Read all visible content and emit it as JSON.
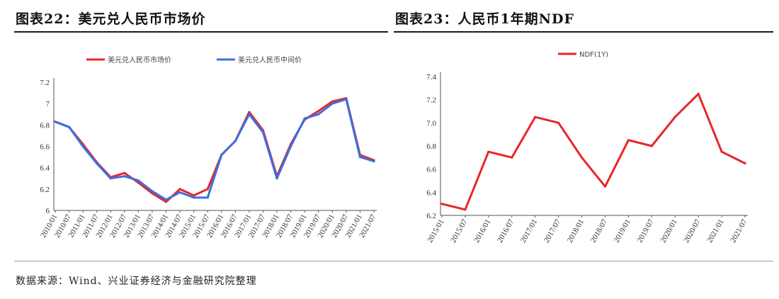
{
  "chart_data": [
    {
      "type": "line",
      "title": "图表22：美元兑人民币市场价",
      "legend_position": "top-center",
      "ylim": [
        6,
        7.2
      ],
      "yticks": [
        6,
        6.2,
        6.4,
        6.6,
        6.8,
        7,
        7.2
      ],
      "x": [
        "2010/01",
        "2010/07",
        "2011/01",
        "2011/07",
        "2012/01",
        "2012/07",
        "2013/01",
        "2013/07",
        "2014/01",
        "2014/07",
        "2015/01",
        "2015/07",
        "2016/01",
        "2016/07",
        "2017/01",
        "2017/07",
        "2018/01",
        "2018/07",
        "2019/01",
        "2019/07",
        "2020/01",
        "2020/07",
        "2021/01",
        "2021/07"
      ],
      "series": [
        {
          "name": "美元兑人民币市场价",
          "color": "#e8262a",
          "values": [
            6.83,
            6.78,
            6.62,
            6.45,
            6.31,
            6.35,
            6.26,
            6.16,
            6.08,
            6.2,
            6.14,
            6.2,
            6.52,
            6.65,
            6.92,
            6.75,
            6.32,
            6.62,
            6.85,
            6.93,
            7.02,
            7.05,
            6.52,
            6.47
          ]
        },
        {
          "name": "美元兑人民币中间价",
          "color": "#3b6fe0",
          "values": [
            6.83,
            6.78,
            6.6,
            6.44,
            6.3,
            6.32,
            6.28,
            6.18,
            6.1,
            6.17,
            6.12,
            6.12,
            6.52,
            6.65,
            6.9,
            6.73,
            6.3,
            6.6,
            6.86,
            6.9,
            7.0,
            7.04,
            6.5,
            6.46
          ]
        }
      ]
    },
    {
      "type": "line",
      "title": "图表23：人民币1年期NDF",
      "legend_position": "top-center",
      "ylim": [
        6.2,
        7.4
      ],
      "yticks": [
        "6.2",
        "6.4",
        "6.6",
        "6.8",
        "7.0",
        "7.2",
        "7.4"
      ],
      "x": [
        "2015/01",
        "2015/07",
        "2016/01",
        "2016/07",
        "2017/01",
        "2017/07",
        "2018/01",
        "2018/07",
        "2019/01",
        "2019/07",
        "2020/01",
        "2020/07",
        "2021/01",
        "2021/07"
      ],
      "series": [
        {
          "name": "NDF(1Y)",
          "color": "#e8262a",
          "values": [
            6.3,
            6.25,
            6.75,
            6.7,
            7.05,
            7.0,
            6.7,
            6.45,
            6.85,
            6.8,
            7.05,
            7.25,
            6.75,
            6.65
          ]
        }
      ]
    }
  ],
  "source": "数据来源：Wind、兴业证券经济与金融研究院整理"
}
